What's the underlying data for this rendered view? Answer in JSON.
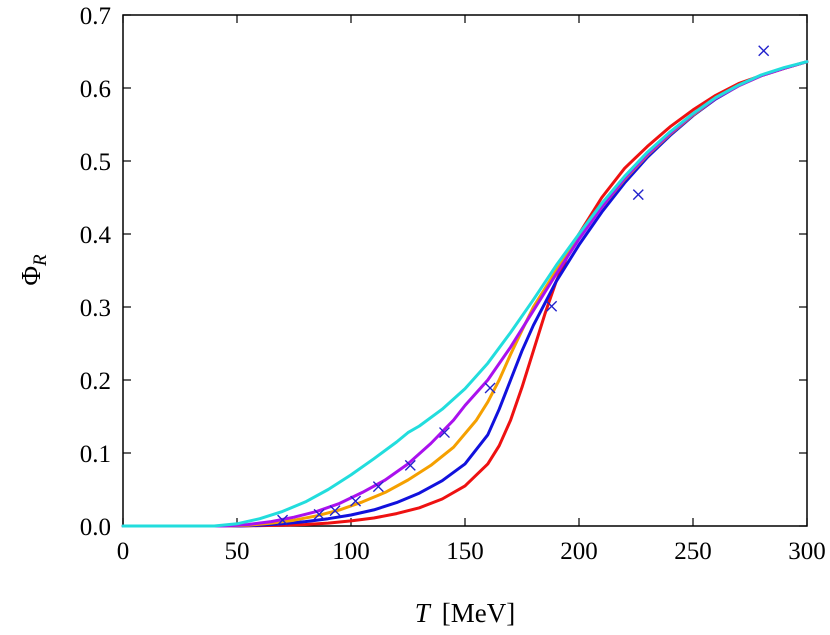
{
  "chart_data": {
    "type": "line",
    "xlabel": {
      "var": "T",
      "unit": "[MeV]"
    },
    "ylabel": {
      "var": "Φ",
      "sub": "R"
    },
    "xlim": [
      0,
      300
    ],
    "ylim": [
      0,
      0.7
    ],
    "xticks": [
      0,
      50,
      100,
      150,
      200,
      250,
      300
    ],
    "xtick_labels": [
      "0",
      "50",
      "100",
      "150",
      "200",
      "250",
      "300"
    ],
    "yticks": [
      0.0,
      0.1,
      0.2,
      0.3,
      0.4,
      0.5,
      0.6,
      0.7
    ],
    "ytick_labels": [
      "0.0",
      "0.1",
      "0.2",
      "0.3",
      "0.4",
      "0.5",
      "0.6",
      "0.7"
    ],
    "grid": false,
    "series": [
      {
        "name": "red",
        "color": "#ee1111",
        "x": [
          0,
          50,
          60,
          70,
          80,
          90,
          100,
          110,
          120,
          130,
          140,
          150,
          160,
          165,
          170,
          175,
          180,
          185,
          190,
          195,
          200,
          210,
          220,
          230,
          240,
          250,
          260,
          270,
          280,
          290,
          300
        ],
        "y": [
          0,
          0,
          0.0005,
          0.001,
          0.002,
          0.004,
          0.007,
          0.011,
          0.017,
          0.025,
          0.037,
          0.055,
          0.085,
          0.11,
          0.145,
          0.19,
          0.24,
          0.29,
          0.335,
          0.37,
          0.4,
          0.45,
          0.49,
          0.52,
          0.547,
          0.57,
          0.59,
          0.606,
          0.617,
          0.627,
          0.636
        ]
      },
      {
        "name": "blue",
        "color": "#1111dd",
        "x": [
          0,
          50,
          60,
          70,
          80,
          90,
          100,
          110,
          120,
          130,
          140,
          150,
          160,
          165,
          170,
          175,
          180,
          185,
          190,
          200,
          210,
          220,
          230,
          240,
          250,
          260,
          270,
          280,
          290,
          300
        ],
        "y": [
          0,
          0,
          0.001,
          0.003,
          0.006,
          0.01,
          0.015,
          0.022,
          0.032,
          0.045,
          0.062,
          0.085,
          0.125,
          0.16,
          0.2,
          0.24,
          0.275,
          0.305,
          0.335,
          0.385,
          0.43,
          0.47,
          0.505,
          0.535,
          0.562,
          0.585,
          0.603,
          0.617,
          0.627,
          0.636
        ]
      },
      {
        "name": "orange",
        "color": "#f5a000",
        "x": [
          0,
          45,
          55,
          65,
          75,
          85,
          95,
          105,
          115,
          125,
          135,
          145,
          155,
          160,
          165,
          170,
          175,
          180,
          190,
          200,
          210,
          220,
          230,
          240,
          250,
          260,
          270,
          280,
          290,
          300
        ],
        "y": [
          0,
          0,
          0.001,
          0.004,
          0.008,
          0.014,
          0.022,
          0.033,
          0.046,
          0.063,
          0.083,
          0.108,
          0.145,
          0.17,
          0.2,
          0.235,
          0.268,
          0.3,
          0.35,
          0.395,
          0.437,
          0.475,
          0.508,
          0.537,
          0.563,
          0.586,
          0.603,
          0.617,
          0.627,
          0.636
        ]
      },
      {
        "name": "purple",
        "color": "#aa11ee",
        "x": [
          0,
          45,
          55,
          65,
          75,
          85,
          95,
          105,
          115,
          125,
          135,
          145,
          150,
          160,
          170,
          180,
          190,
          200,
          210,
          220,
          230,
          240,
          250,
          260,
          270,
          280,
          290,
          300
        ],
        "y": [
          0,
          0,
          0.002,
          0.006,
          0.012,
          0.02,
          0.031,
          0.046,
          0.063,
          0.085,
          0.113,
          0.145,
          0.165,
          0.2,
          0.245,
          0.295,
          0.345,
          0.393,
          0.437,
          0.476,
          0.509,
          0.538,
          0.564,
          0.586,
          0.603,
          0.617,
          0.627,
          0.636
        ]
      },
      {
        "name": "cyan",
        "color": "#22dddd",
        "x": [
          0,
          40,
          50,
          60,
          70,
          80,
          90,
          100,
          110,
          120,
          125,
          130,
          140,
          150,
          160,
          170,
          180,
          190,
          200,
          210,
          220,
          230,
          240,
          250,
          260,
          270,
          280,
          290,
          300
        ],
        "y": [
          0,
          0,
          0.003,
          0.01,
          0.02,
          0.033,
          0.05,
          0.07,
          0.092,
          0.115,
          0.128,
          0.137,
          0.16,
          0.188,
          0.223,
          0.265,
          0.31,
          0.357,
          0.4,
          0.442,
          0.479,
          0.512,
          0.54,
          0.565,
          0.587,
          0.604,
          0.618,
          0.628,
          0.636
        ]
      }
    ],
    "markers": {
      "name": "data",
      "color": "#2222cc",
      "symbol": "x",
      "x": [
        70,
        86,
        93,
        102,
        112,
        126,
        141,
        161,
        188,
        226,
        281
      ],
      "y": [
        0.008,
        0.016,
        0.021,
        0.034,
        0.054,
        0.083,
        0.128,
        0.189,
        0.301,
        0.454,
        0.651
      ]
    }
  }
}
